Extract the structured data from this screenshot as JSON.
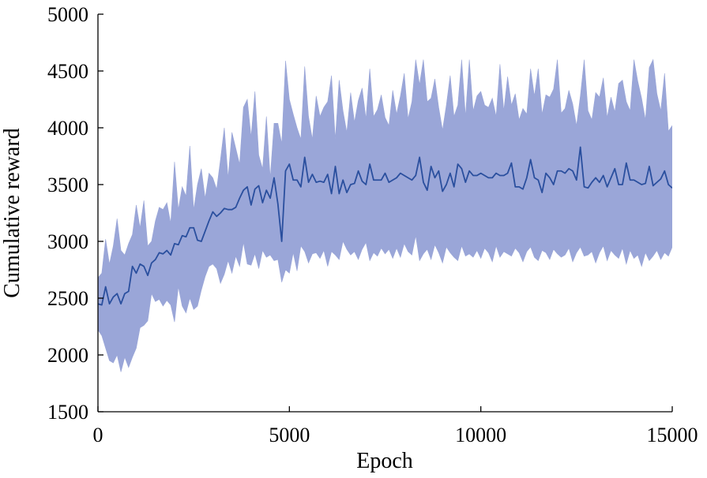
{
  "chart_data": {
    "type": "line",
    "title": "",
    "xlabel": "Epoch",
    "ylabel": "Cumulative reward",
    "xlim": [
      0,
      15000
    ],
    "ylim": [
      1500,
      5000
    ],
    "xticks": [
      0,
      5000,
      10000,
      15000
    ],
    "yticks": [
      1500,
      2000,
      2500,
      3000,
      3500,
      4000,
      4500,
      5000
    ],
    "grid": false,
    "legend": "none",
    "colors": {
      "line": "#2a4f9e",
      "band": "#9aa6d8"
    },
    "series": [
      {
        "x": [
          0,
          100,
          200,
          300,
          400,
          500,
          600,
          700,
          800,
          900,
          1000,
          1100,
          1200,
          1300,
          1400,
          1500,
          1600,
          1700,
          1800,
          1900,
          2000,
          2100,
          2200,
          2300,
          2400,
          2500,
          2600,
          2700,
          2800,
          2900,
          3000,
          3100,
          3200,
          3300,
          3400,
          3500,
          3600,
          3700,
          3800,
          3900,
          4000,
          4100,
          4200,
          4300,
          4400,
          4500,
          4600,
          4700,
          4800,
          4900,
          5000,
          5100,
          5200,
          5300,
          5400,
          5500,
          5600,
          5700,
          5800,
          5900,
          6000,
          6100,
          6200,
          6300,
          6400,
          6500,
          6600,
          6700,
          6800,
          6900,
          7000,
          7100,
          7200,
          7300,
          7400,
          7500,
          7600,
          7700,
          7800,
          7900,
          8000,
          8100,
          8200,
          8300,
          8400,
          8500,
          8600,
          8700,
          8800,
          8900,
          9000,
          9100,
          9200,
          9300,
          9400,
          9500,
          9600,
          9700,
          9800,
          9900,
          10000,
          10100,
          10200,
          10300,
          10400,
          10500,
          10600,
          10700,
          10800,
          10900,
          11000,
          11100,
          11200,
          11300,
          11400,
          11500,
          11600,
          11700,
          11800,
          11900,
          12000,
          12100,
          12200,
          12300,
          12400,
          12500,
          12600,
          12700,
          12800,
          12900,
          13000,
          13100,
          13200,
          13300,
          13400,
          13500,
          13600,
          13700,
          13800,
          13900,
          14000,
          14100,
          14200,
          14300,
          14400,
          14500,
          14600,
          14700,
          14800,
          14900,
          15000
        ],
        "mean": [
          2450,
          2440,
          2600,
          2450,
          2510,
          2540,
          2450,
          2540,
          2560,
          2780,
          2720,
          2800,
          2780,
          2700,
          2810,
          2840,
          2900,
          2890,
          2920,
          2880,
          2980,
          2970,
          3050,
          3040,
          3120,
          3120,
          3010,
          3000,
          3090,
          3180,
          3260,
          3220,
          3250,
          3290,
          3280,
          3280,
          3300,
          3380,
          3450,
          3480,
          3320,
          3460,
          3490,
          3340,
          3450,
          3380,
          3560,
          3330,
          3000,
          3620,
          3680,
          3540,
          3540,
          3480,
          3740,
          3520,
          3590,
          3520,
          3530,
          3520,
          3590,
          3420,
          3660,
          3420,
          3540,
          3430,
          3500,
          3510,
          3620,
          3530,
          3500,
          3680,
          3540,
          3540,
          3540,
          3600,
          3520,
          3540,
          3560,
          3600,
          3580,
          3560,
          3540,
          3580,
          3740,
          3520,
          3450,
          3660,
          3560,
          3620,
          3440,
          3500,
          3600,
          3480,
          3680,
          3640,
          3520,
          3620,
          3580,
          3580,
          3600,
          3580,
          3560,
          3560,
          3600,
          3580,
          3580,
          3600,
          3690,
          3480,
          3480,
          3460,
          3560,
          3720,
          3560,
          3540,
          3430,
          3600,
          3560,
          3500,
          3620,
          3620,
          3600,
          3640,
          3620,
          3540,
          3830,
          3480,
          3470,
          3520,
          3560,
          3520,
          3580,
          3480,
          3560,
          3640,
          3500,
          3500,
          3690,
          3540,
          3540,
          3520,
          3500,
          3510,
          3660,
          3490,
          3520,
          3550,
          3620,
          3500,
          3470
        ],
        "upper": [
          2680,
          2720,
          3020,
          2800,
          2960,
          3200,
          2920,
          2880,
          2980,
          3060,
          3320,
          3120,
          3360,
          2960,
          3000,
          3180,
          3300,
          3280,
          3340,
          3160,
          3700,
          3280,
          3480,
          3400,
          3840,
          3280,
          3500,
          3640,
          3380,
          3600,
          3560,
          3460,
          3720,
          4000,
          3560,
          3960,
          3820,
          3680,
          4180,
          4250,
          3920,
          4320,
          3760,
          3640,
          4100,
          3560,
          4040,
          4040,
          3860,
          4590,
          4250,
          4120,
          4000,
          3900,
          4540,
          4100,
          3900,
          4280,
          4100,
          4180,
          4230,
          4460,
          3900,
          4420,
          4150,
          3960,
          4310,
          4050,
          4240,
          4350,
          4080,
          4520,
          4100,
          4160,
          4290,
          4090,
          4020,
          4330,
          4120,
          4280,
          4480,
          4080,
          4230,
          4600,
          4380,
          4600,
          4230,
          4260,
          4430,
          4180,
          3980,
          4200,
          4460,
          4100,
          4200,
          4600,
          4100,
          4600,
          4150,
          4280,
          4320,
          4200,
          4180,
          4260,
          4100,
          4560,
          4150,
          4450,
          4200,
          4300,
          4070,
          4170,
          4120,
          4520,
          4280,
          4520,
          4120,
          4290,
          4270,
          4340,
          4600,
          4130,
          4170,
          4330,
          4210,
          4020,
          4280,
          4600,
          4150,
          4070,
          4310,
          4270,
          4440,
          4090,
          4270,
          4140,
          4390,
          4420,
          4230,
          4150,
          4600,
          4410,
          4260,
          4070,
          4530,
          4600,
          4300,
          4150,
          4480,
          3970,
          4020
        ],
        "lower": [
          2220,
          2170,
          2060,
          1950,
          1930,
          2000,
          1850,
          1980,
          1890,
          1980,
          2060,
          2240,
          2260,
          2300,
          2540,
          2470,
          2490,
          2430,
          2480,
          2440,
          2290,
          2600,
          2430,
          2370,
          2500,
          2400,
          2430,
          2570,
          2690,
          2780,
          2800,
          2760,
          2630,
          2710,
          2830,
          2720,
          2870,
          2780,
          2990,
          2800,
          2790,
          2890,
          2760,
          2920,
          2860,
          2880,
          2830,
          2840,
          2640,
          2750,
          2720,
          2900,
          2740,
          2960,
          2910,
          2810,
          2890,
          2900,
          2850,
          2920,
          2780,
          2910,
          2880,
          2840,
          3000,
          2930,
          2880,
          2910,
          2840,
          2930,
          2990,
          2830,
          2900,
          2870,
          2940,
          2890,
          2930,
          2850,
          2940,
          2860,
          2980,
          2910,
          2880,
          3050,
          2830,
          2890,
          2930,
          2840,
          2970,
          2900,
          2810,
          2950,
          2900,
          2860,
          2830,
          2960,
          2870,
          2890,
          2860,
          2920,
          2850,
          2940,
          2900,
          2820,
          2960,
          2860,
          2910,
          2890,
          2870,
          2940,
          2900,
          2820,
          2910,
          2950,
          2860,
          2830,
          2920,
          2900,
          2840,
          2930,
          2890,
          2860,
          2880,
          2940,
          2820,
          2900,
          2950,
          2870,
          2880,
          2910,
          2810,
          2900,
          2960,
          2830,
          2920,
          2880,
          2850,
          2940,
          2800,
          2920,
          2850,
          2880,
          2780,
          2900,
          2830,
          2870,
          2920,
          2840,
          2900,
          2870,
          2950
        ]
      }
    ]
  }
}
